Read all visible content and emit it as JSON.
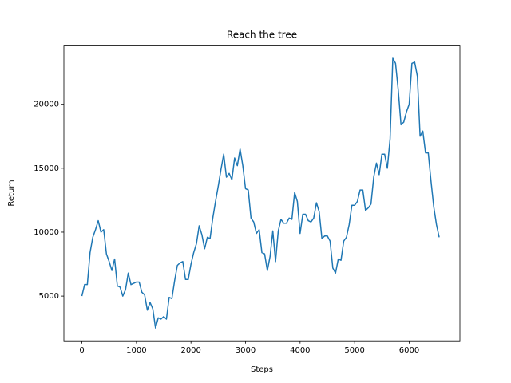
{
  "chart_data": {
    "type": "line",
    "title": "Reach the tree",
    "x_label": "Steps",
    "y_label": "Return",
    "x": [
      0,
      50,
      100,
      150,
      200,
      250,
      300,
      350,
      400,
      450,
      500,
      550,
      600,
      650,
      700,
      750,
      800,
      850,
      900,
      950,
      1000,
      1050,
      1100,
      1150,
      1200,
      1250,
      1300,
      1350,
      1400,
      1450,
      1500,
      1550,
      1600,
      1650,
      1700,
      1750,
      1800,
      1850,
      1900,
      1950,
      2000,
      2050,
      2100,
      2150,
      2200,
      2250,
      2300,
      2350,
      2400,
      2450,
      2500,
      2550,
      2600,
      2650,
      2700,
      2750,
      2800,
      2850,
      2900,
      2950,
      3000,
      3050,
      3100,
      3150,
      3200,
      3250,
      3300,
      3350,
      3400,
      3450,
      3500,
      3550,
      3600,
      3650,
      3700,
      3750,
      3800,
      3850,
      3900,
      3950,
      4000,
      4050,
      4100,
      4150,
      4200,
      4250,
      4300,
      4350,
      4400,
      4450,
      4500,
      4550,
      4600,
      4650,
      4700,
      4750,
      4800,
      4850,
      4900,
      4950,
      5000,
      5050,
      5100,
      5150,
      5200,
      5250,
      5300,
      5350,
      5400,
      5450,
      5500,
      5550,
      5600,
      5650,
      5700,
      5750,
      5800,
      5850,
      5900,
      5950,
      6000,
      6050,
      6100,
      6150,
      6200,
      6250,
      6300,
      6350,
      6400,
      6450,
      6500,
      6550
    ],
    "series": [
      {
        "name": "Return",
        "color": "#1f77b4",
        "values": [
          5000,
          5900,
          5900,
          8400,
          9600,
          10200,
          10900,
          10000,
          10200,
          8300,
          7700,
          7000,
          7900,
          5800,
          5700,
          5000,
          5500,
          6800,
          5900,
          6000,
          6100,
          6100,
          5300,
          5100,
          3900,
          4500,
          4000,
          2500,
          3300,
          3200,
          3400,
          3200,
          4900,
          4800,
          6200,
          7400,
          7600,
          7700,
          6300,
          6300,
          7500,
          8400,
          9100,
          10500,
          9800,
          8700,
          9600,
          9500,
          11100,
          12400,
          13600,
          14900,
          16100,
          14300,
          14600,
          14100,
          15800,
          15200,
          16500,
          15200,
          13400,
          13300,
          11100,
          10800,
          9900,
          10200,
          8400,
          8300,
          7000,
          8100,
          10100,
          7700,
          10100,
          11000,
          10700,
          10700,
          11100,
          11000,
          13100,
          12400,
          9900,
          11400,
          11400,
          10900,
          10800,
          11100,
          12300,
          11600,
          9500,
          9700,
          9700,
          9300,
          7200,
          6800,
          7900,
          7800,
          9300,
          9600,
          10600,
          12100,
          12100,
          12400,
          13300,
          13300,
          11700,
          11900,
          12200,
          14300,
          15400,
          14500,
          16100,
          16100,
          15000,
          17300,
          23600,
          23200,
          21100,
          18400,
          18600,
          19400,
          20000,
          23200,
          23300,
          22200,
          17500,
          17900,
          16200,
          16200,
          14000,
          12000,
          10600,
          9600
        ]
      }
    ],
    "xlim": [
      -330,
      6930
    ],
    "xticks": [
      0,
      1000,
      2000,
      3000,
      4000,
      5000,
      6000
    ],
    "ylim": [
      1500,
      24560
    ],
    "yticks": [
      5000,
      10000,
      15000,
      20000
    ]
  }
}
